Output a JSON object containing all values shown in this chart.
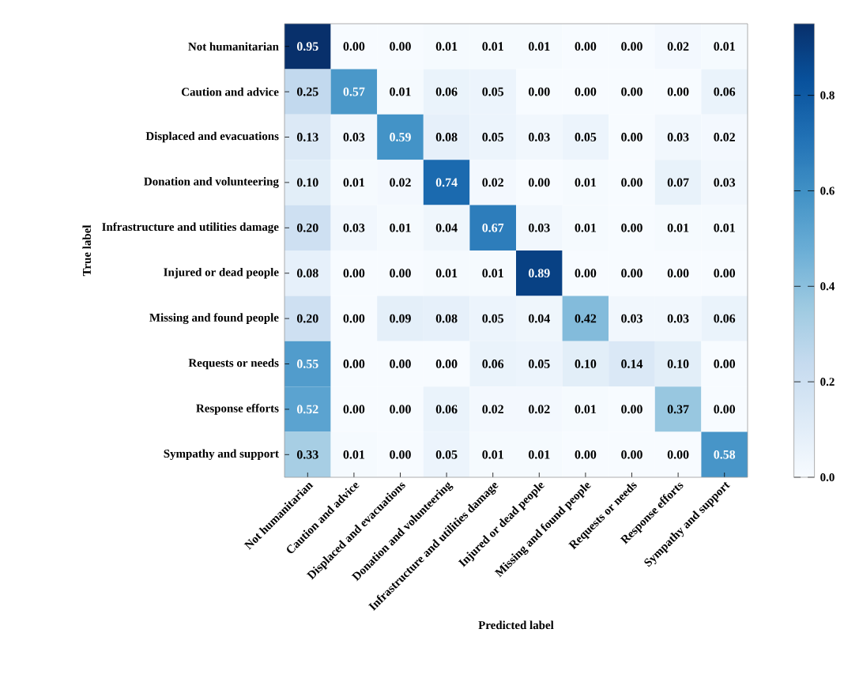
{
  "chart_data": {
    "type": "heatmap",
    "xlabel": "Predicted label",
    "ylabel": "True label",
    "categories": [
      "Not humanitarian",
      "Caution and advice",
      "Displaced and evacuations",
      "Donation and volunteering",
      "Infrastructure and utilities damage",
      "Injured or dead people",
      "Missing and found people",
      "Requests or needs",
      "Response efforts",
      "Sympathy and support"
    ],
    "y_categories": [
      "Not humanitarian",
      "Caution and advice",
      "Displaced and evacuations",
      "Donation and volunteering",
      "Infrastructure and utilities damage",
      "Injured or dead people",
      "Missing and found people",
      "Requests or needs",
      "Response efforts",
      "Sympathy and support"
    ],
    "cells": [
      [
        0.95,
        0.0,
        0.0,
        0.01,
        0.01,
        0.01,
        0.0,
        0.0,
        0.02,
        0.01
      ],
      [
        0.25,
        0.57,
        0.01,
        0.06,
        0.05,
        0.0,
        0.0,
        0.0,
        0.0,
        0.06
      ],
      [
        0.13,
        0.03,
        0.59,
        0.08,
        0.05,
        0.03,
        0.05,
        0.0,
        0.03,
        0.02
      ],
      [
        0.1,
        0.01,
        0.02,
        0.74,
        0.02,
        0.0,
        0.01,
        0.0,
        0.07,
        0.03
      ],
      [
        0.2,
        0.03,
        0.01,
        0.04,
        0.67,
        0.03,
        0.01,
        0.0,
        0.01,
        0.01
      ],
      [
        0.08,
        0.0,
        0.0,
        0.01,
        0.01,
        0.89,
        0.0,
        0.0,
        0.0,
        0.0
      ],
      [
        0.2,
        0.0,
        0.09,
        0.08,
        0.05,
        0.04,
        0.42,
        0.03,
        0.03,
        0.06
      ],
      [
        0.55,
        0.0,
        0.0,
        0.0,
        0.06,
        0.05,
        0.1,
        0.14,
        0.1,
        0.0
      ],
      [
        0.52,
        0.0,
        0.0,
        0.06,
        0.02,
        0.02,
        0.01,
        0.0,
        0.37,
        0.0
      ],
      [
        0.33,
        0.01,
        0.0,
        0.05,
        0.01,
        0.01,
        0.0,
        0.0,
        0.0,
        0.58
      ]
    ],
    "cell_labels": [
      [
        "0.95",
        "0.00",
        "0.00",
        "0.01",
        "0.01",
        "0.01",
        "0.00",
        "0.00",
        "0.02",
        "0.01"
      ],
      [
        "0.25",
        "0.57",
        "0.01",
        "0.06",
        "0.05",
        "0.00",
        "0.00",
        "0.00",
        "0.00",
        "0.06"
      ],
      [
        "0.13",
        "0.03",
        "0.59",
        "0.08",
        "0.05",
        "0.03",
        "0.05",
        "0.00",
        "0.03",
        "0.02"
      ],
      [
        "0.10",
        "0.01",
        "0.02",
        "0.74",
        "0.02",
        "0.00",
        "0.01",
        "0.00",
        "0.07",
        "0.03"
      ],
      [
        "0.20",
        "0.03",
        "0.01",
        "0.04",
        "0.67",
        "0.03",
        "0.01",
        "0.00",
        "0.01",
        "0.01"
      ],
      [
        "0.08",
        "0.00",
        "0.00",
        "0.01",
        "0.01",
        "0.89",
        "0.00",
        "0.00",
        "0.00",
        "0.00"
      ],
      [
        "0.20",
        "0.00",
        "0.09",
        "0.08",
        "0.05",
        "0.04",
        "0.42",
        "0.03",
        "0.03",
        "0.06"
      ],
      [
        "0.55",
        "0.00",
        "0.00",
        "0.00",
        "0.06",
        "0.05",
        "0.10",
        "0.14",
        "0.10",
        "0.00"
      ],
      [
        "0.52",
        "0.00",
        "0.00",
        "0.06",
        "0.02",
        "0.02",
        "0.01",
        "0.00",
        "0.37",
        "0.00"
      ],
      [
        "0.33",
        "0.01",
        "0.00",
        "0.05",
        "0.01",
        "0.01",
        "0.00",
        "0.00",
        "0.00",
        "0.58"
      ]
    ],
    "clim": [
      0,
      0.95
    ],
    "cticks": [
      {
        "value": 0,
        "label": "0.0"
      },
      {
        "value": 0.2,
        "label": "0.2"
      },
      {
        "value": 0.4,
        "label": "0.4"
      },
      {
        "value": 0.6,
        "label": "0.6"
      },
      {
        "value": 0.8,
        "label": "0.8"
      }
    ]
  }
}
